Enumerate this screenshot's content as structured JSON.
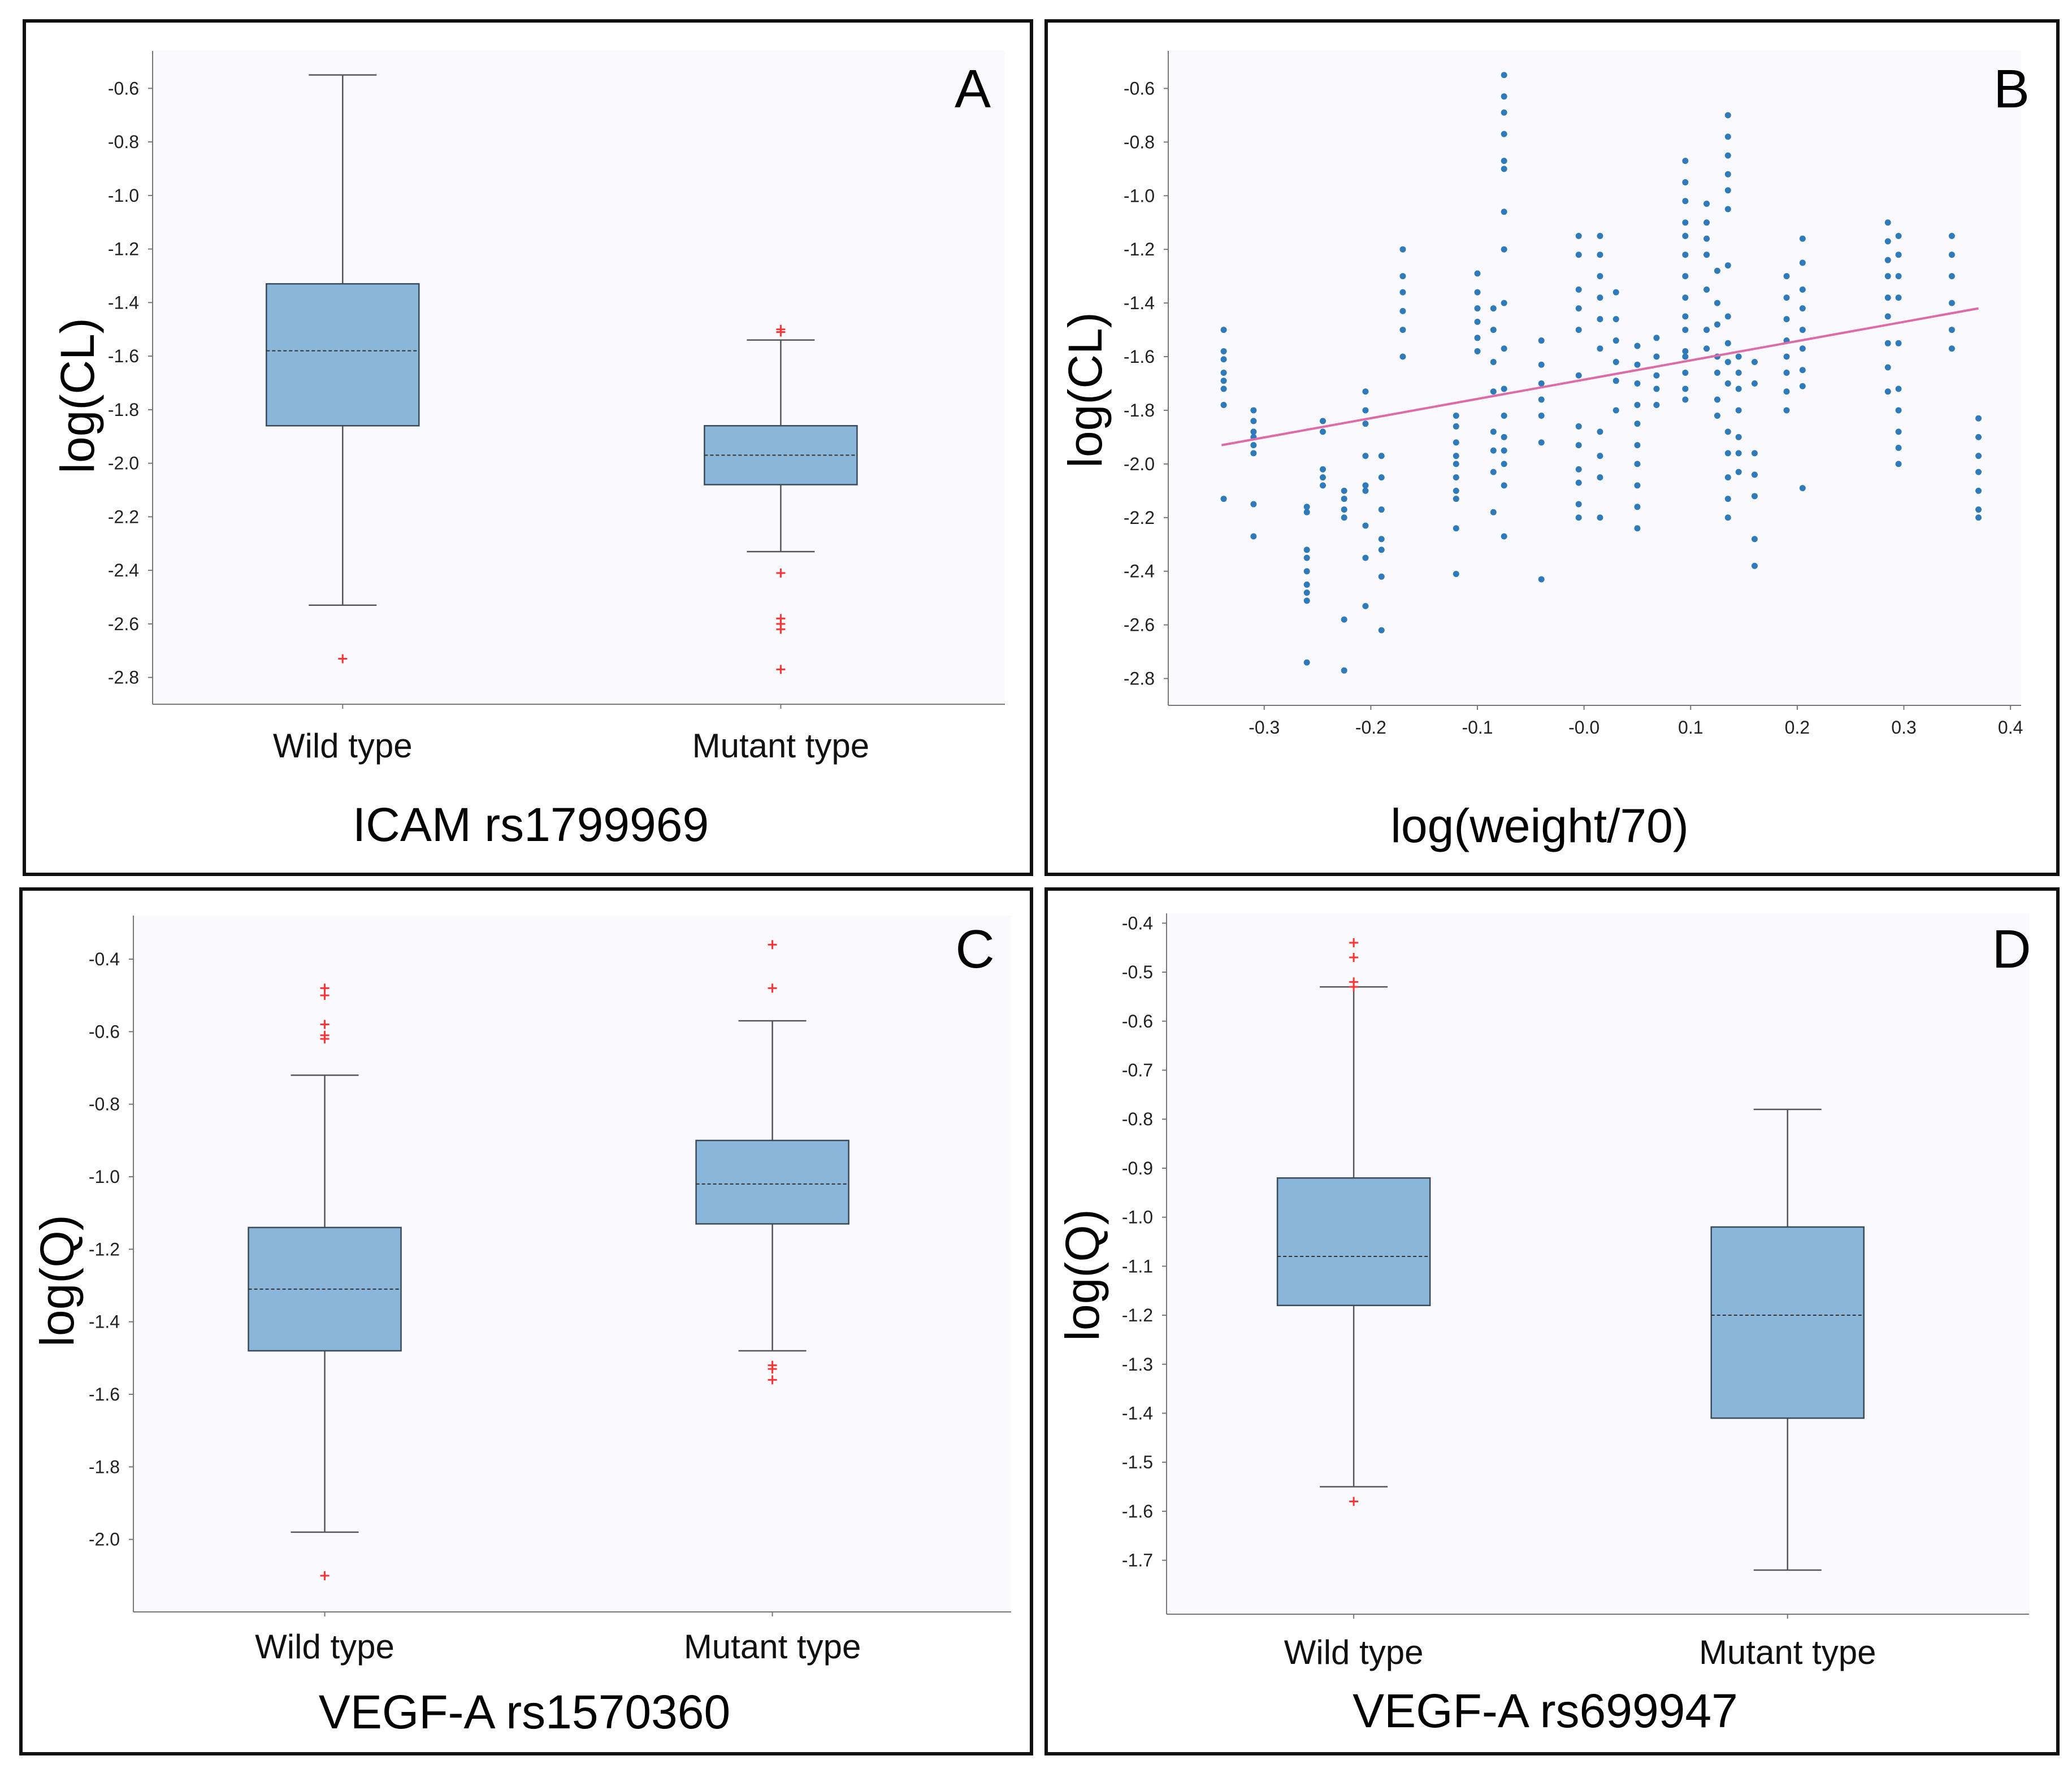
{
  "colors": {
    "plot_bg": "#fafafe",
    "box_fill": "#8ab6d9",
    "box_stroke": "#3a4a5a",
    "whisker": "#555555",
    "outlier": "#ff3333",
    "scatter_point": "#2f7ab8",
    "trend_line": "#e06aa8",
    "axis": "#777777"
  },
  "chart_data": [
    {
      "panel": "A",
      "type": "box",
      "ylabel": "log(CL)",
      "xlabel": "ICAM rs1799969",
      "ylim": [
        -2.9,
        -0.46
      ],
      "yticks": [
        "-0.6",
        "-0.8",
        "-1.0",
        "-1.2",
        "-1.4",
        "-1.6",
        "-1.8",
        "-2.0",
        "-2.2",
        "-2.4",
        "-2.6",
        "-2.8"
      ],
      "ytick_values": [
        -0.6,
        -0.8,
        -1.0,
        -1.2,
        -1.4,
        -1.6,
        -1.8,
        -2.0,
        -2.2,
        -2.4,
        -2.6,
        -2.8
      ],
      "groups": [
        {
          "name": "Wild type",
          "min": -2.53,
          "q1": -1.86,
          "median": -1.58,
          "q3": -1.33,
          "max": -0.55,
          "outliers": [
            -2.73
          ]
        },
        {
          "name": "Mutant type",
          "min": -2.33,
          "q1": -2.08,
          "median": -1.97,
          "q3": -1.86,
          "max": -1.54,
          "outliers": [
            -1.5,
            -1.51,
            -2.41,
            -2.58,
            -2.6,
            -2.62,
            -2.77
          ]
        }
      ]
    },
    {
      "panel": "B",
      "type": "scatter",
      "ylabel": "log(CL)",
      "xlabel": "log(weight/70)",
      "xlim": [
        -0.39,
        0.41
      ],
      "ylim": [
        -2.9,
        -0.46
      ],
      "yticks": [
        "-0.6",
        "-0.8",
        "-1.0",
        "-1.2",
        "-1.4",
        "-1.6",
        "-1.8",
        "-2.0",
        "-2.2",
        "-2.4",
        "-2.6",
        "-2.8"
      ],
      "ytick_values": [
        -0.6,
        -0.8,
        -1.0,
        -1.2,
        -1.4,
        -1.6,
        -1.8,
        -2.0,
        -2.2,
        -2.4,
        -2.6,
        -2.8
      ],
      "xticks": [
        "-0.3",
        "-0.2",
        "-0.1",
        "-0.0",
        "0.1",
        "0.2",
        "0.3",
        "0.4"
      ],
      "xtick_values": [
        -0.3,
        -0.2,
        -0.1,
        0.0,
        0.1,
        0.2,
        0.3,
        0.4
      ],
      "trend_line": {
        "x": [
          -0.34,
          0.37
        ],
        "y": [
          -1.93,
          -1.42
        ]
      },
      "columns": [
        {
          "x": -0.338,
          "y": [
            -1.5,
            -1.58,
            -1.61,
            -1.66,
            -1.69,
            -1.72,
            -1.78,
            -2.13
          ]
        },
        {
          "x": -0.31,
          "y": [
            -1.8,
            -1.84,
            -1.88,
            -1.9,
            -1.93,
            -1.96,
            -2.15,
            -2.27
          ]
        },
        {
          "x": -0.26,
          "y": [
            -2.16,
            -2.18,
            -2.32,
            -2.35,
            -2.4,
            -2.45,
            -2.48,
            -2.51,
            -2.74
          ]
        },
        {
          "x": -0.245,
          "y": [
            -1.84,
            -1.88,
            -2.02,
            -2.05,
            -2.08
          ]
        },
        {
          "x": -0.225,
          "y": [
            -2.1,
            -2.13,
            -2.17,
            -2.2,
            -2.58,
            -2.77
          ]
        },
        {
          "x": -0.205,
          "y": [
            -1.73,
            -1.8,
            -1.85,
            -1.97,
            -2.08,
            -2.1,
            -2.23,
            -2.35,
            -2.53
          ]
        },
        {
          "x": -0.19,
          "y": [
            -1.97,
            -2.05,
            -2.17,
            -2.28,
            -2.32,
            -2.42,
            -2.62
          ]
        },
        {
          "x": -0.17,
          "y": [
            -1.2,
            -1.3,
            -1.36,
            -1.43,
            -1.5,
            -1.6
          ]
        },
        {
          "x": -0.12,
          "y": [
            -1.82,
            -1.86,
            -1.92,
            -1.97,
            -2.0,
            -2.05,
            -2.1,
            -2.13,
            -2.24,
            -2.41
          ]
        },
        {
          "x": -0.1,
          "y": [
            -1.29,
            -1.36,
            -1.42,
            -1.47,
            -1.53,
            -1.58
          ]
        },
        {
          "x": -0.085,
          "y": [
            -1.42,
            -1.5,
            -1.62,
            -1.73,
            -1.88,
            -1.95,
            -2.03,
            -2.18
          ]
        },
        {
          "x": -0.075,
          "y": [
            -0.55,
            -0.63,
            -0.69,
            -0.77,
            -0.87,
            -0.9,
            -1.06,
            -1.2,
            -1.4,
            -1.57,
            -1.72,
            -1.82,
            -1.9,
            -1.95,
            -2.0,
            -2.08,
            -2.27
          ]
        },
        {
          "x": -0.04,
          "y": [
            -1.54,
            -1.63,
            -1.7,
            -1.76,
            -1.82,
            -1.92,
            -2.43
          ]
        },
        {
          "x": -0.005,
          "y": [
            -1.15,
            -1.22,
            -1.35,
            -1.42,
            -1.5,
            -1.67,
            -1.86,
            -1.93,
            -2.02,
            -2.07,
            -2.15,
            -2.2
          ]
        },
        {
          "x": 0.015,
          "y": [
            -1.15,
            -1.22,
            -1.3,
            -1.38,
            -1.46,
            -1.57,
            -1.88,
            -1.97,
            -2.05,
            -2.2
          ]
        },
        {
          "x": 0.03,
          "y": [
            -1.36,
            -1.46,
            -1.54,
            -1.62,
            -1.69,
            -1.8
          ]
        },
        {
          "x": 0.05,
          "y": [
            -1.56,
            -1.63,
            -1.7,
            -1.78,
            -1.85,
            -1.93,
            -2.0,
            -2.08,
            -2.16,
            -2.24
          ]
        },
        {
          "x": 0.068,
          "y": [
            -1.53,
            -1.6,
            -1.67,
            -1.72,
            -1.78
          ]
        },
        {
          "x": 0.095,
          "y": [
            -0.87,
            -0.95,
            -1.02,
            -1.1,
            -1.15,
            -1.22,
            -1.3,
            -1.38,
            -1.45,
            -1.5,
            -1.58,
            -1.6,
            -1.66,
            -1.72,
            -1.76
          ]
        },
        {
          "x": 0.115,
          "y": [
            -1.03,
            -1.1,
            -1.16,
            -1.22,
            -1.35,
            -1.5,
            -1.57
          ]
        },
        {
          "x": 0.125,
          "y": [
            -1.28,
            -1.4,
            -1.48,
            -1.6,
            -1.66,
            -1.76,
            -1.82
          ]
        },
        {
          "x": 0.135,
          "y": [
            -0.7,
            -0.78,
            -0.85,
            -0.92,
            -0.98,
            -1.05,
            -1.26,
            -1.45,
            -1.55,
            -1.62,
            -1.7,
            -1.88,
            -1.96,
            -2.05,
            -2.13,
            -2.2
          ]
        },
        {
          "x": 0.145,
          "y": [
            -1.6,
            -1.66,
            -1.72,
            -1.8,
            -1.9,
            -1.96,
            -2.03
          ]
        },
        {
          "x": 0.16,
          "y": [
            -1.62,
            -1.7,
            -1.96,
            -2.04,
            -2.12,
            -2.28,
            -2.38
          ]
        },
        {
          "x": 0.19,
          "y": [
            -1.3,
            -1.38,
            -1.46,
            -1.54,
            -1.6,
            -1.66,
            -1.73,
            -1.8
          ]
        },
        {
          "x": 0.205,
          "y": [
            -1.16,
            -1.25,
            -1.35,
            -1.42,
            -1.5,
            -1.57,
            -1.65,
            -1.71,
            -2.09
          ]
        },
        {
          "x": 0.285,
          "y": [
            -1.1,
            -1.17,
            -1.24,
            -1.3,
            -1.38,
            -1.45,
            -1.55,
            -1.64,
            -1.73
          ]
        },
        {
          "x": 0.295,
          "y": [
            -1.15,
            -1.22,
            -1.3,
            -1.38,
            -1.55,
            -1.72,
            -1.8,
            -1.88,
            -1.94,
            -2.0
          ]
        },
        {
          "x": 0.345,
          "y": [
            -1.15,
            -1.22,
            -1.3,
            -1.4,
            -1.5,
            -1.57
          ]
        },
        {
          "x": 0.37,
          "y": [
            -1.83,
            -1.9,
            -1.97,
            -2.03,
            -2.1,
            -2.17,
            -2.2
          ]
        }
      ]
    },
    {
      "panel": "C",
      "type": "box",
      "ylabel": "log(Q)",
      "xlabel": "VEGF-A rs1570360",
      "ylim": [
        -2.2,
        -0.28
      ],
      "yticks": [
        "-0.4",
        "-0.6",
        "-0.8",
        "-1.0",
        "-1.2",
        "-1.4",
        "-1.6",
        "-1.8",
        "-2.0"
      ],
      "ytick_values": [
        -0.4,
        -0.6,
        -0.8,
        -1.0,
        -1.2,
        -1.4,
        -1.6,
        -1.8,
        -2.0
      ],
      "groups": [
        {
          "name": "Wild type",
          "min": -1.98,
          "q1": -1.48,
          "median": -1.31,
          "q3": -1.14,
          "max": -0.72,
          "outliers": [
            -0.48,
            -0.5,
            -0.58,
            -0.61,
            -0.62,
            -2.1
          ]
        },
        {
          "name": "Mutant type",
          "min": -1.48,
          "q1": -1.13,
          "median": -1.02,
          "q3": -0.9,
          "max": -0.57,
          "outliers": [
            -0.36,
            -0.48,
            -1.52,
            -1.53,
            -1.56
          ]
        }
      ]
    },
    {
      "panel": "D",
      "type": "box",
      "ylabel": "log(Q)",
      "xlabel": "VEGF-A rs699947",
      "ylim": [
        -1.81,
        -0.38
      ],
      "yticks": [
        "-0.4",
        "-0.5",
        "-0.6",
        "-0.7",
        "-0.8",
        "-0.9",
        "-1.0",
        "-1.1",
        "-1.2",
        "-1.3",
        "-1.4",
        "-1.5",
        "-1.6",
        "-1.7"
      ],
      "ytick_values": [
        -0.4,
        -0.5,
        -0.6,
        -0.7,
        -0.8,
        -0.9,
        -1.0,
        -1.1,
        -1.2,
        -1.3,
        -1.4,
        -1.5,
        -1.6,
        -1.7
      ],
      "groups": [
        {
          "name": "Wild type",
          "min": -1.55,
          "q1": -1.18,
          "median": -1.08,
          "q3": -0.92,
          "max": -0.53,
          "outliers": [
            -0.44,
            -0.47,
            -0.52,
            -0.53,
            -1.58
          ]
        },
        {
          "name": "Mutant type",
          "min": -1.72,
          "q1": -1.41,
          "median": -1.2,
          "q3": -1.02,
          "max": -0.78,
          "outliers": []
        }
      ]
    }
  ]
}
